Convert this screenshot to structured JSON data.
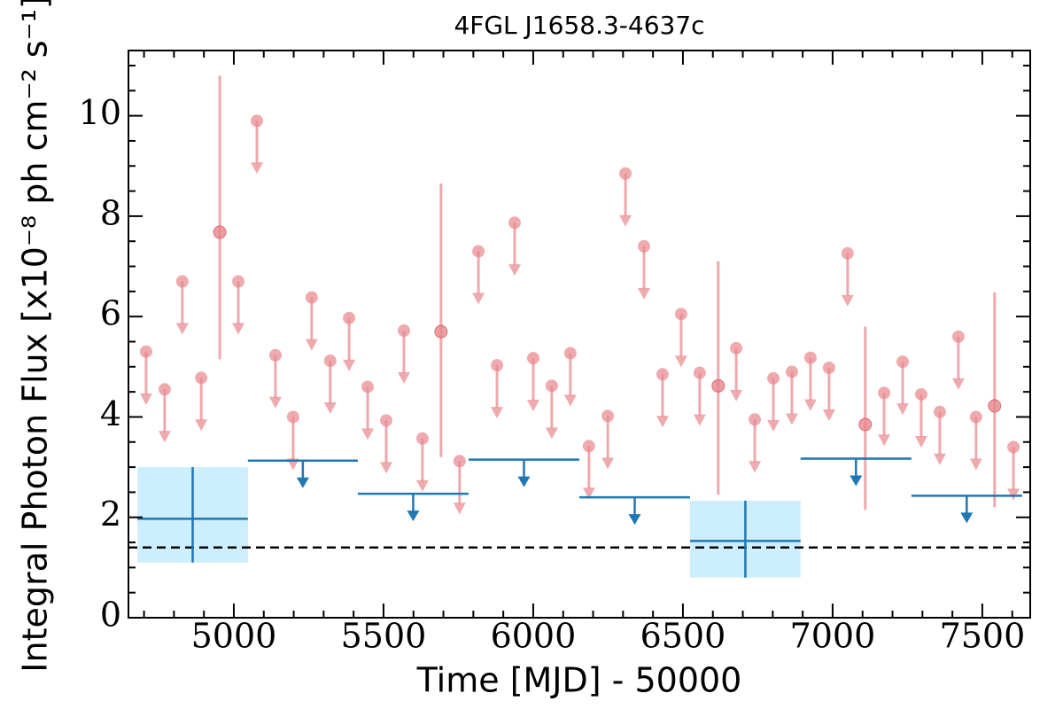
{
  "chart_data": {
    "type": "lightcurve",
    "title": "4FGL J1658.3-4637c",
    "xlabel": "Time [MJD] - 50000",
    "ylabel": "Integral Photon Flux [x10⁻⁸ ph cm⁻² s⁻¹]",
    "xlim": [
      4648,
      7660
    ],
    "ylim": [
      0,
      11.3
    ],
    "xticks": [
      5000,
      5500,
      6000,
      6500,
      7000,
      7500
    ],
    "yticks": [
      0,
      2,
      4,
      6,
      8,
      10
    ],
    "xminorticks": [
      4700,
      4800,
      4900,
      5100,
      5200,
      5300,
      5400,
      5600,
      5700,
      5800,
      5900,
      6100,
      6200,
      6300,
      6400,
      6600,
      6700,
      6800,
      6900,
      7100,
      7200,
      7300,
      7400,
      7600
    ],
    "yminorticks": [
      0.5,
      1,
      1.5,
      2.5,
      3,
      3.5,
      4.5,
      5,
      5.5,
      6.5,
      7,
      7.5,
      8.5,
      9,
      9.5,
      10.5,
      11
    ],
    "reference_line": 1.4,
    "monthly": {
      "color": "#e8868c",
      "x": [
        4707,
        4769,
        4828,
        4891,
        4953,
        5015,
        5077,
        5139,
        5198,
        5260,
        5322,
        5385,
        5447,
        5509,
        5568,
        5630,
        5692,
        5754,
        5817,
        5879,
        5938,
        6000,
        6062,
        6124,
        6186,
        6249,
        6308,
        6370,
        6432,
        6494,
        6556,
        6618,
        6678,
        6740,
        6802,
        6864,
        6926,
        6988,
        7050,
        7109,
        7172,
        7234,
        7296,
        7358,
        7420,
        7479,
        7541,
        7604
      ],
      "values": [
        5.3,
        4.55,
        6.7,
        4.78,
        7.68,
        6.7,
        9.9,
        5.23,
        4.0,
        6.38,
        5.12,
        5.97,
        4.6,
        3.93,
        5.72,
        3.57,
        5.7,
        3.12,
        7.3,
        5.03,
        7.87,
        5.17,
        4.62,
        5.27,
        3.42,
        4.02,
        8.85,
        7.4,
        4.85,
        6.05,
        4.88,
        4.62,
        5.37,
        3.95,
        4.77,
        4.9,
        5.18,
        4.98,
        7.26,
        3.85,
        4.48,
        5.1,
        4.45,
        4.1,
        5.6,
        4.0,
        4.22,
        3.4
      ],
      "upper_limit": [
        true,
        true,
        true,
        true,
        false,
        true,
        true,
        true,
        true,
        true,
        true,
        true,
        true,
        true,
        true,
        true,
        false,
        true,
        true,
        true,
        true,
        true,
        true,
        true,
        true,
        true,
        true,
        true,
        true,
        true,
        true,
        false,
        true,
        true,
        true,
        true,
        true,
        true,
        true,
        false,
        true,
        true,
        true,
        true,
        true,
        true,
        false,
        true
      ],
      "lo": [
        null,
        null,
        null,
        null,
        5.15,
        null,
        null,
        null,
        null,
        null,
        null,
        null,
        null,
        null,
        null,
        null,
        3.2,
        null,
        null,
        null,
        null,
        null,
        null,
        null,
        null,
        null,
        null,
        null,
        null,
        null,
        null,
        2.45,
        null,
        null,
        null,
        null,
        null,
        null,
        null,
        2.15,
        null,
        null,
        null,
        null,
        null,
        null,
        2.2,
        null
      ],
      "hi": [
        null,
        null,
        null,
        null,
        10.8,
        null,
        null,
        null,
        null,
        null,
        null,
        null,
        null,
        null,
        null,
        null,
        8.65,
        null,
        null,
        null,
        null,
        null,
        null,
        null,
        null,
        null,
        null,
        null,
        null,
        null,
        null,
        7.1,
        null,
        null,
        null,
        null,
        null,
        null,
        null,
        5.8,
        null,
        null,
        null,
        null,
        null,
        null,
        6.48,
        null
      ]
    },
    "yearly": {
      "color": "#1f77b4",
      "shade": "#cdeefc",
      "x_start": [
        4678,
        5047,
        5414,
        5784,
        6154,
        6524,
        6893,
        7263
      ],
      "x_end": [
        5047,
        5414,
        5784,
        6154,
        6524,
        6893,
        7263,
        7633
      ],
      "values": [
        1.97,
        3.13,
        2.47,
        3.15,
        2.4,
        1.53,
        3.17,
        2.43
      ],
      "upper_limit": [
        false,
        true,
        true,
        true,
        true,
        false,
        true,
        true
      ],
      "lo": [
        1.1,
        null,
        null,
        null,
        null,
        0.8,
        null,
        null
      ],
      "hi": [
        3.0,
        null,
        null,
        null,
        null,
        2.33,
        null,
        null
      ]
    }
  }
}
